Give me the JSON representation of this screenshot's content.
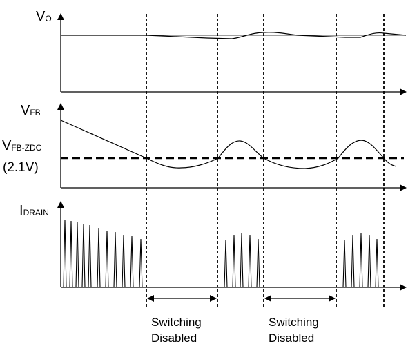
{
  "diagram": {
    "signals": {
      "vo": {
        "main": "V",
        "sub": "O"
      },
      "vfb": {
        "main": "V",
        "sub": "FB"
      },
      "vfb_zdc": {
        "main": "V",
        "sub": "FB-ZDC",
        "value": "(2.1V)"
      },
      "idrain": {
        "main": "I",
        "sub": "DRAIN"
      }
    },
    "intervals": [
      {
        "line1": "Switching",
        "line2": "Disabled"
      },
      {
        "line1": "Switching",
        "line2": "Disabled"
      }
    ]
  }
}
